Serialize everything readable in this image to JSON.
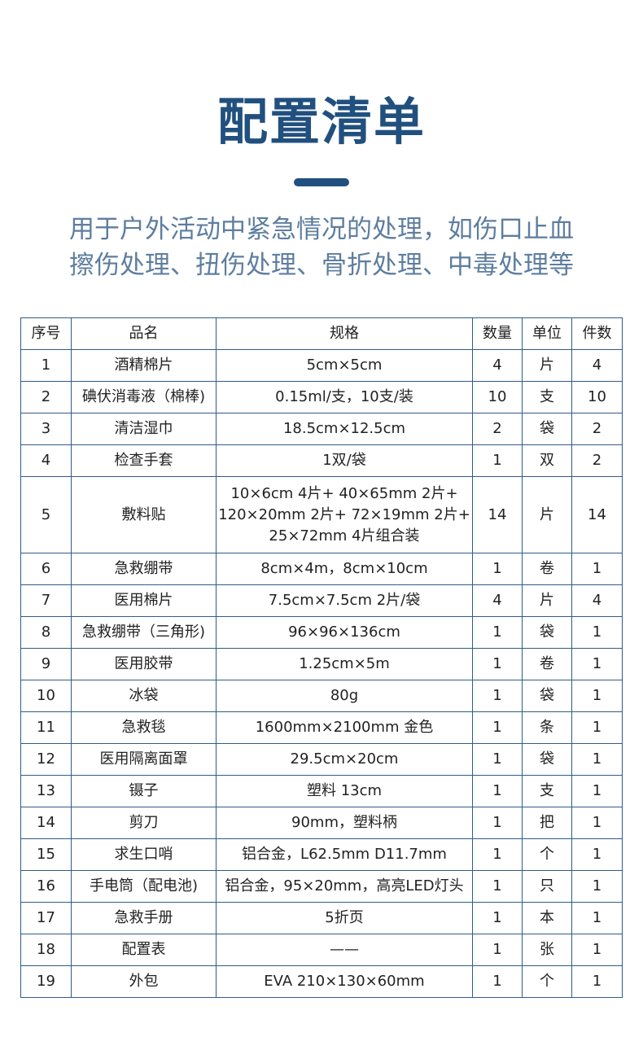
{
  "header": {
    "title": "配置清单",
    "subtitle_lines": [
      "用于户外活动中紧急情况的处理，如伤口止血",
      "擦伤处理、扭伤处理、骨折处理、中毒处理等"
    ]
  },
  "colors": {
    "title": "#21507f",
    "subtitle": "#5e7e9f",
    "border": "#2f5c8a"
  },
  "table": {
    "columns": [
      "序号",
      "品名",
      "规格",
      "数量",
      "单位",
      "件数"
    ],
    "rows": [
      [
        "1",
        "酒精棉片",
        "5cm×5cm",
        "4",
        "片",
        "4"
      ],
      [
        "2",
        "碘伏消毒液（棉棒)",
        "0.15ml/支，10支/装",
        "10",
        "支",
        "10"
      ],
      [
        "3",
        "清洁湿巾",
        "18.5cm×12.5cm",
        "2",
        "袋",
        "2"
      ],
      [
        "4",
        "检查手套",
        "1双/袋",
        "1",
        "双",
        "2"
      ],
      [
        "5",
        "敷料贴",
        "10×6cm 4片+ 40×65mm 2片+ 120×20mm 2片+ 72×19mm 2片+ 25×72mm 4片组合装",
        "14",
        "片",
        "14"
      ],
      [
        "6",
        "急救绷带",
        "8cm×4m，8cm×10cm",
        "1",
        "卷",
        "1"
      ],
      [
        "7",
        "医用棉片",
        "7.5cm×7.5cm 2片/袋",
        "4",
        "片",
        "4"
      ],
      [
        "8",
        "急救绷带（三角形)",
        "96×96×136cm",
        "1",
        "袋",
        "1"
      ],
      [
        "9",
        "医用胶带",
        "1.25cm×5m",
        "1",
        "卷",
        "1"
      ],
      [
        "10",
        "冰袋",
        "80g",
        "1",
        "袋",
        "1"
      ],
      [
        "11",
        "急救毯",
        "1600mm×2100mm 金色",
        "1",
        "条",
        "1"
      ],
      [
        "12",
        "医用隔离面罩",
        "29.5cm×20cm",
        "1",
        "袋",
        "1"
      ],
      [
        "13",
        "镊子",
        "塑料 13cm",
        "1",
        "支",
        "1"
      ],
      [
        "14",
        "剪刀",
        "90mm，塑料柄",
        "1",
        "把",
        "1"
      ],
      [
        "15",
        "求生口哨",
        "铝合金，L62.5mm D11.7mm",
        "1",
        "个",
        "1"
      ],
      [
        "16",
        "手电筒（配电池)",
        "铝合金，95×20mm，高亮LED灯头",
        "1",
        "只",
        "1"
      ],
      [
        "17",
        "急救手册",
        "5折页",
        "1",
        "本",
        "1"
      ],
      [
        "18",
        "配置表",
        "——",
        "1",
        "张",
        "1"
      ],
      [
        "19",
        "外包",
        "EVA 210×130×60mm",
        "1",
        "个",
        "1"
      ]
    ]
  }
}
